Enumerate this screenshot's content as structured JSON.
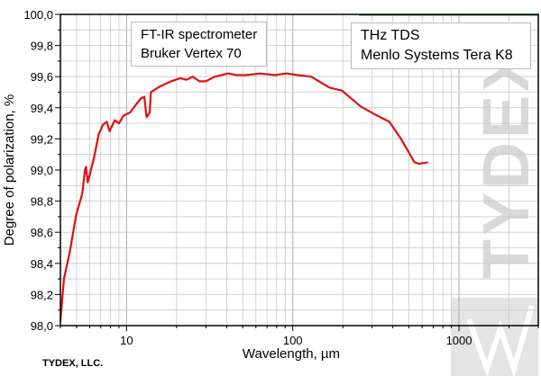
{
  "chart_data": {
    "type": "line",
    "xlabel": "Wavelength, µm",
    "ylabel": "Degree of polarization, %",
    "x_scale": "log",
    "xlim": [
      4,
      3000
    ],
    "ylim": [
      98.0,
      100.0
    ],
    "grid": true,
    "x_ticks": [
      {
        "value": 10,
        "label": "10"
      },
      {
        "value": 100,
        "label": "100"
      },
      {
        "value": 1000,
        "label": "1000"
      }
    ],
    "y_ticks": [
      {
        "value": 98.0,
        "label": "98,0"
      },
      {
        "value": 98.2,
        "label": "98,2"
      },
      {
        "value": 98.4,
        "label": "98,4"
      },
      {
        "value": 98.6,
        "label": "98,6"
      },
      {
        "value": 98.8,
        "label": "98,8"
      },
      {
        "value": 99.0,
        "label": "99,0"
      },
      {
        "value": 99.2,
        "label": "99,2"
      },
      {
        "value": 99.4,
        "label": "99,4"
      },
      {
        "value": 99.6,
        "label": "99,6"
      },
      {
        "value": 99.8,
        "label": "99,8"
      },
      {
        "value": 100.0,
        "label": "100,0"
      }
    ],
    "series": [
      {
        "color": "#e01010",
        "x": [
          4,
          4.2,
          4.55,
          4.97,
          5.42,
          5.62,
          5.7,
          5.84,
          6.37,
          6.8,
          7.2,
          7.6,
          7.9,
          8.5,
          9.0,
          9.6,
          10.5,
          11.2,
          12.2,
          12.8,
          13.2,
          13.8,
          14.0,
          15.5,
          18.5,
          21,
          23,
          25,
          27.5,
          30,
          34,
          41,
          46,
          52,
          64,
          78,
          92,
          107,
          129,
          166,
          198,
          255,
          308,
          381,
          448,
          540,
          575,
          650
        ],
        "y": [
          98.03,
          98.3,
          98.47,
          98.71,
          98.85,
          99.0,
          99.02,
          98.92,
          99.08,
          99.23,
          99.29,
          99.31,
          99.25,
          99.32,
          99.3,
          99.35,
          99.37,
          99.41,
          99.46,
          99.47,
          99.34,
          99.37,
          99.5,
          99.53,
          99.57,
          99.59,
          99.58,
          99.6,
          99.57,
          99.57,
          99.6,
          99.62,
          99.61,
          99.61,
          99.62,
          99.61,
          99.62,
          99.61,
          99.6,
          99.53,
          99.51,
          99.41,
          99.36,
          99.31,
          99.2,
          99.05,
          99.04,
          99.05
        ]
      },
      {
        "color": "#1a8a1a",
        "x": [
          250,
          3000
        ],
        "y": [
          99.997,
          99.997
        ]
      }
    ],
    "annotations": [
      {
        "lines": [
          "FT-IR spectrometer",
          "Bruker Vertex 70"
        ]
      },
      {
        "lines": [
          "THz TDS",
          "Menlo Systems Tera K8"
        ]
      }
    ]
  },
  "watermark": {
    "text": "TYDEX"
  },
  "footer": "TYDEX, LLC."
}
